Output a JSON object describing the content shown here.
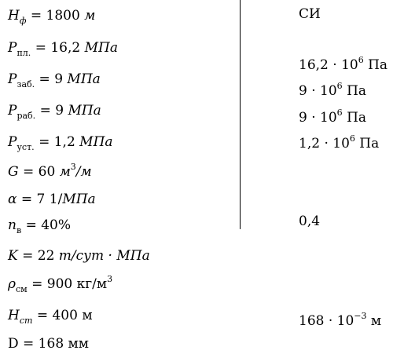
{
  "si_header": "СИ",
  "left": {
    "h_f": {
      "sym": "H",
      "sub": "ф",
      "rest": "= 1800",
      "unit": "м"
    },
    "p_pl": {
      "sym": "P",
      "sub": "пл.",
      "rest": "= 16,2",
      "unit": "МПа"
    },
    "p_zab": {
      "sym": "P",
      "sub": "заб.",
      "rest": "= 9",
      "unit": "МПа"
    },
    "p_rab": {
      "sym": "P",
      "sub": "раб.",
      "rest": "= 9",
      "unit": "МПа"
    },
    "p_ust": {
      "sym": "P",
      "sub": "уст.",
      "rest": "= 1,2",
      "unit": "МПа"
    },
    "g": {
      "sym": "G",
      "rest": "= 60",
      "unit1": "м",
      "sup": "3",
      "unit2": "/м"
    },
    "alpha": {
      "sym": "α",
      "rest": "= 7 1/",
      "unit": "МПа"
    },
    "n_v": {
      "sym": "n",
      "sub": "в",
      "rest": "= 40%"
    },
    "k": {
      "sym": "K",
      "rest": "= 22",
      "unit": "т/сут · МПа"
    },
    "rho": {
      "sym": "ρ",
      "sub": "см",
      "rest": "= 900 кг/м",
      "sup": "3"
    },
    "h_st": {
      "sym": "H",
      "sub": "ст",
      "rest": "= 400 м"
    },
    "d": {
      "text": "D = 168 мм"
    }
  },
  "right": {
    "p_pl": {
      "base": "16,2 · 10",
      "sup": "6",
      "unit": "Па"
    },
    "p_zab": {
      "base": "9 · 10",
      "sup": "6",
      "unit": "Па"
    },
    "p_rab": {
      "base": "9 · 10",
      "sup": "6",
      "unit": "Па"
    },
    "p_ust": {
      "base": "1,2 · 10",
      "sup": "6",
      "unit": "Па"
    },
    "n_v": {
      "text": "0,4"
    },
    "h_st": {
      "base": "168 · 10",
      "sup": "−3",
      "unit": "м"
    }
  }
}
